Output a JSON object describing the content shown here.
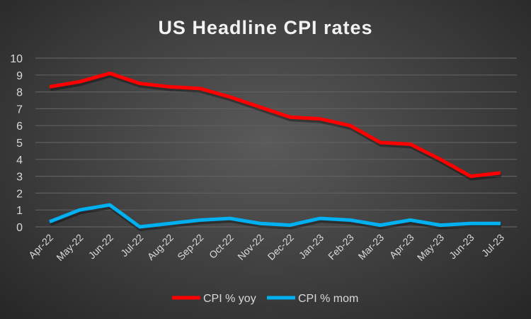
{
  "chart_data": {
    "type": "line",
    "title": "US Headline CPI rates",
    "xlabel": "",
    "ylabel": "",
    "ylim": [
      0,
      10
    ],
    "yticks": [
      "0",
      "1",
      "2",
      "3",
      "4",
      "5",
      "6",
      "7",
      "8",
      "9",
      "10"
    ],
    "grid": true,
    "legend_position": "bottom",
    "categories": [
      "Apr-22",
      "May-22",
      "Jun-22",
      "Jul-22",
      "Aug-22",
      "Sep-22",
      "Oct-22",
      "Nov-22",
      "Dec-22",
      "Jan-23",
      "Feb-23",
      "Mar-23",
      "Apr-23",
      "May-23",
      "Jun-23",
      "Jul-23"
    ],
    "series": [
      {
        "name": "CPI % yoy",
        "color": "#ff0000",
        "values": [
          8.3,
          8.6,
          9.1,
          8.5,
          8.3,
          8.2,
          7.7,
          7.1,
          6.5,
          6.4,
          6.0,
          5.0,
          4.9,
          4.0,
          3.0,
          3.2
        ]
      },
      {
        "name": "CPI % mom",
        "color": "#00b0f0",
        "values": [
          0.3,
          1.0,
          1.3,
          0.0,
          0.2,
          0.4,
          0.5,
          0.2,
          0.1,
          0.5,
          0.4,
          0.1,
          0.4,
          0.1,
          0.2,
          0.2
        ]
      }
    ]
  }
}
